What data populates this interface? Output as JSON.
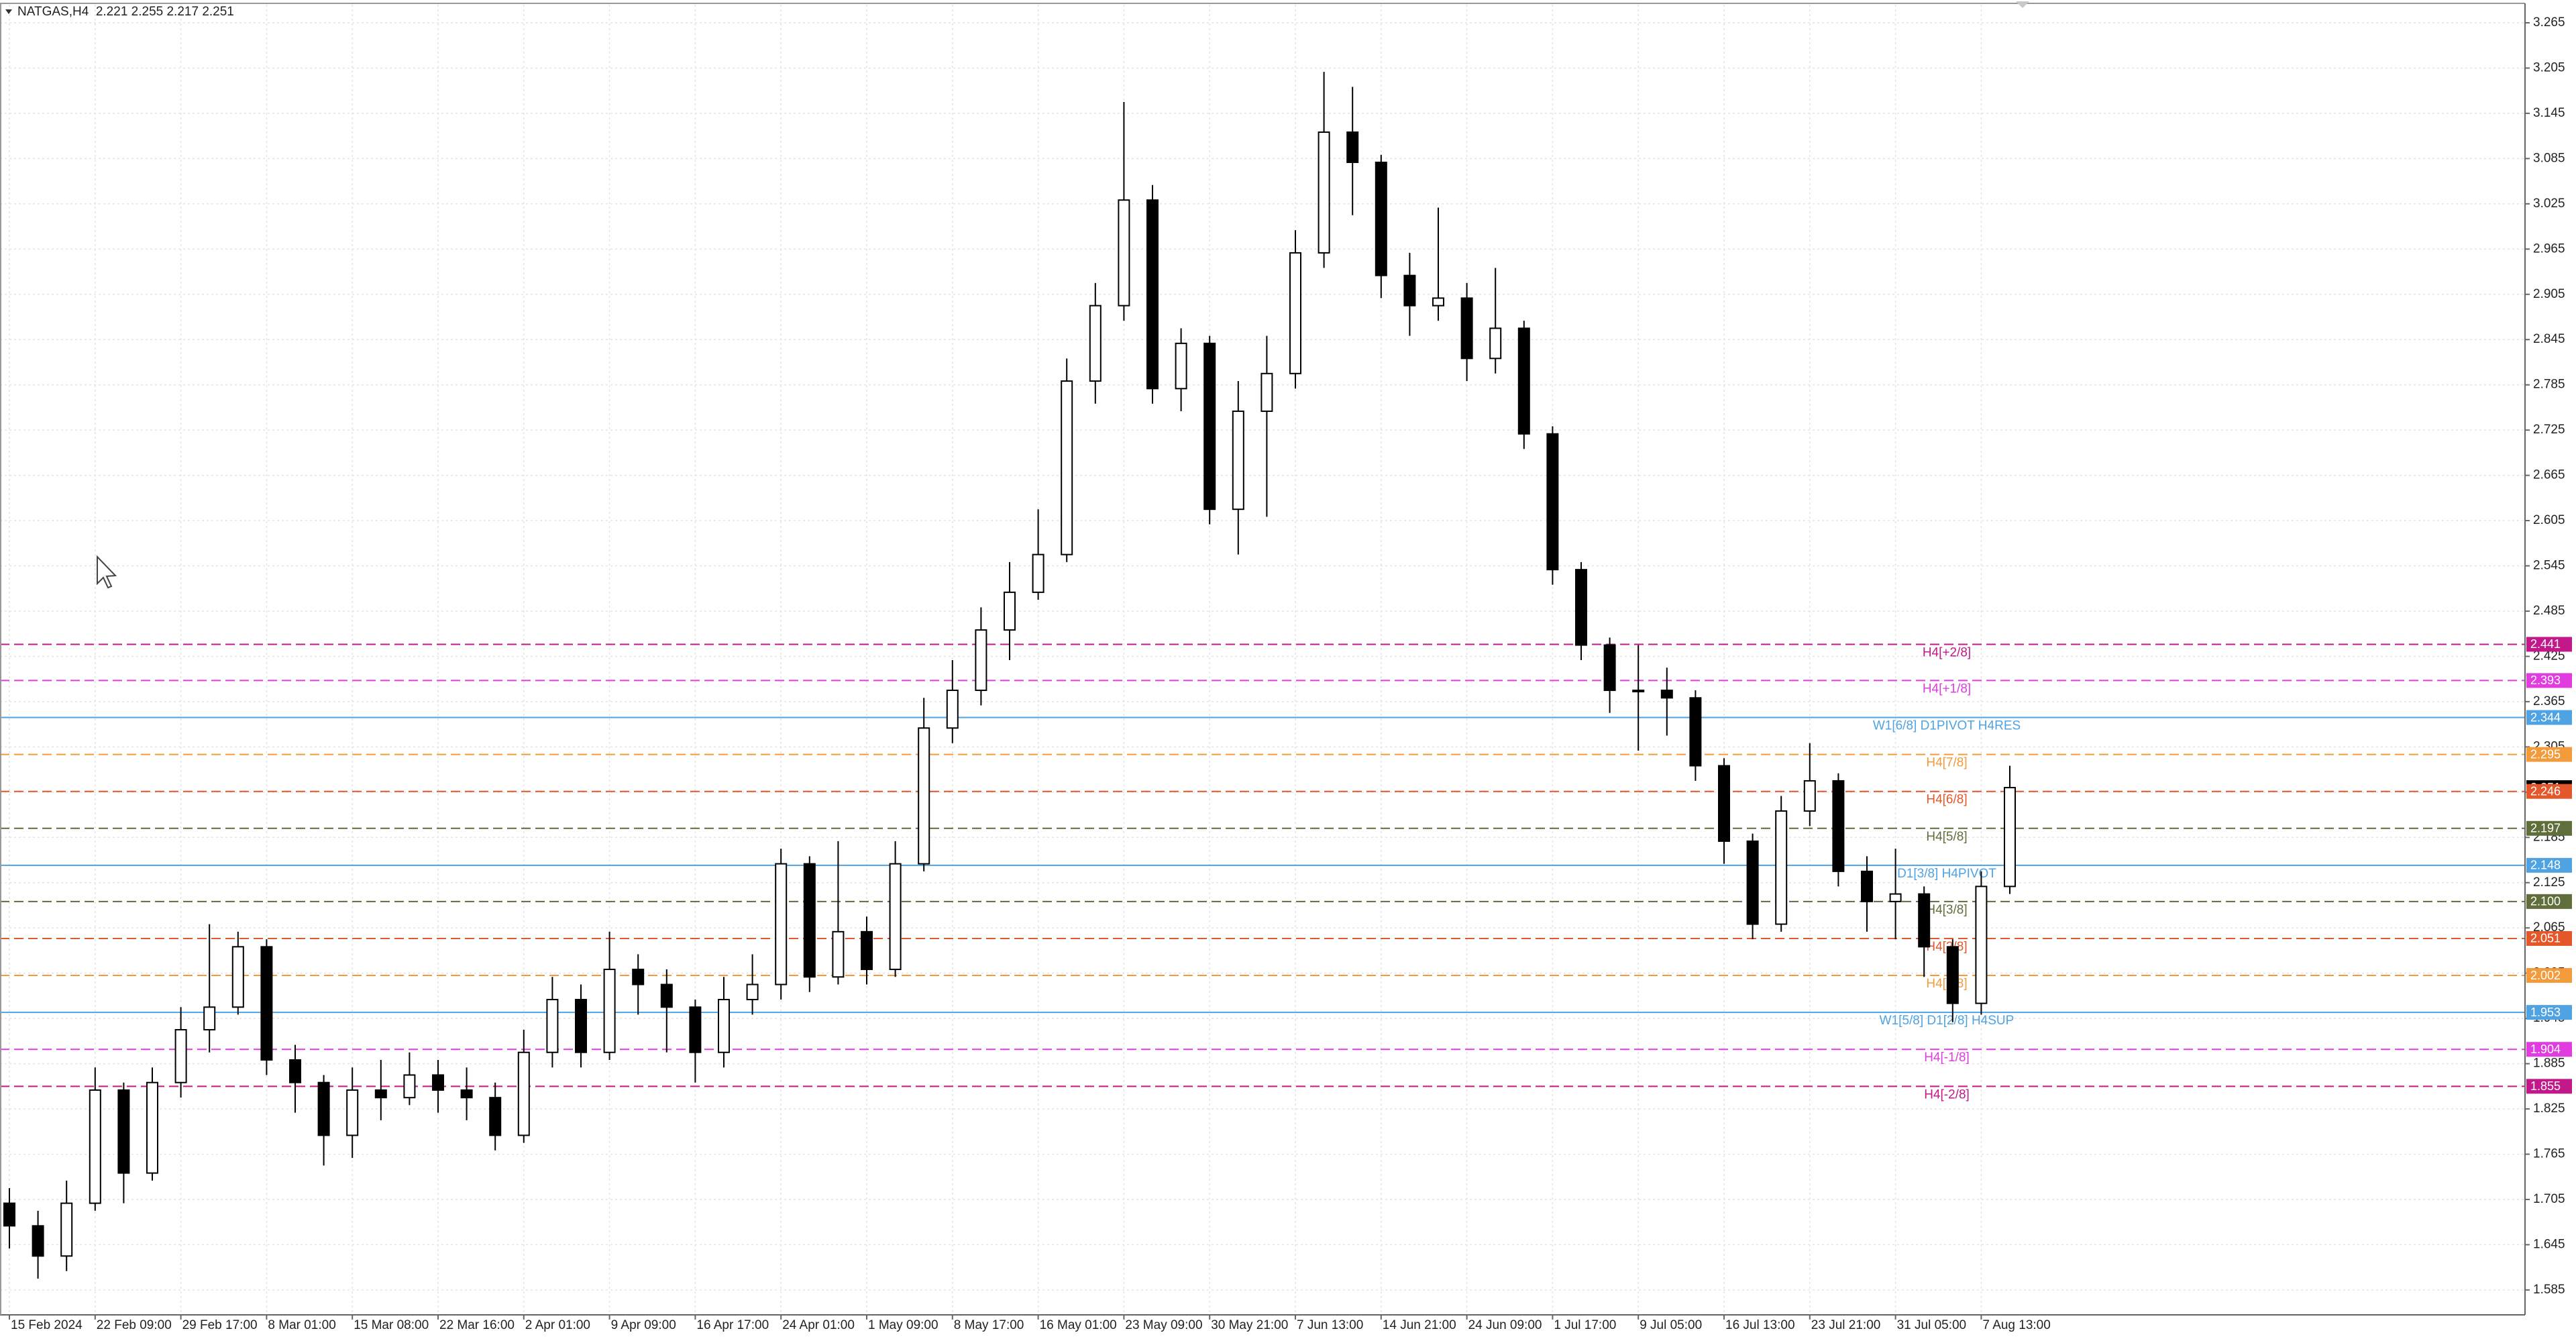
{
  "chart_data": {
    "type": "candlestick",
    "title": "NATGAS,H4  2.221 2.255 2.217 2.251",
    "xtick_labels": [
      "15 Feb 2024",
      "22 Feb 09:00",
      "29 Feb 17:00",
      "8 Mar 01:00",
      "15 Mar 08:00",
      "22 Mar 16:00",
      "2 Apr 01:00",
      "9 Apr 09:00",
      "16 Apr 17:00",
      "24 Apr 01:00",
      "1 May 09:00",
      "8 May 17:00",
      "16 May 01:00",
      "23 May 09:00",
      "30 May 21:00",
      "7 Jun 13:00",
      "14 Jun 21:00",
      "24 Jun 09:00",
      "1 Jul 17:00",
      "9 Jul 05:00",
      "16 Jul 13:00",
      "23 Jul 21:00",
      "31 Jul 05:00",
      "7 Aug 13:00"
    ],
    "open": [
      1.7,
      1.67,
      1.63,
      1.7,
      1.85,
      1.74,
      1.86,
      1.93,
      1.96,
      2.04,
      1.89,
      1.86,
      1.79,
      1.85,
      1.84,
      1.87,
      1.85,
      1.84,
      1.79,
      1.9,
      1.97,
      1.9,
      2.01,
      1.99,
      1.96,
      1.9,
      1.97,
      1.99,
      2.15,
      2.0,
      2.06,
      2.01,
      2.15,
      2.33,
      2.38,
      2.46,
      2.51,
      2.56,
      2.79,
      2.89,
      3.03,
      2.78,
      2.84,
      2.62,
      2.75,
      2.8,
      2.96,
      3.12,
      3.08,
      2.93,
      2.89,
      2.9,
      2.82,
      2.86,
      2.72,
      2.54,
      2.44,
      2.38,
      2.38,
      2.37,
      2.28,
      2.18,
      2.07,
      2.22,
      2.26,
      2.14,
      2.1,
      2.11,
      2.04,
      1.965,
      2.12
    ],
    "high": [
      1.72,
      1.69,
      1.73,
      1.88,
      1.86,
      1.88,
      1.96,
      2.07,
      2.06,
      2.05,
      1.91,
      1.87,
      1.88,
      1.89,
      1.9,
      1.89,
      1.88,
      1.86,
      1.93,
      2.0,
      1.99,
      2.06,
      2.03,
      2.01,
      1.97,
      2.0,
      2.03,
      2.17,
      2.16,
      2.18,
      2.08,
      2.18,
      2.37,
      2.42,
      2.49,
      2.55,
      2.62,
      2.82,
      2.92,
      3.16,
      3.05,
      2.86,
      2.85,
      2.79,
      2.85,
      2.99,
      3.2,
      3.18,
      3.09,
      2.96,
      3.02,
      2.92,
      2.94,
      2.87,
      2.73,
      2.55,
      2.45,
      2.44,
      2.41,
      2.38,
      2.29,
      2.19,
      2.24,
      2.31,
      2.27,
      2.16,
      2.17,
      2.12,
      2.05,
      2.14,
      2.28
    ],
    "low": [
      1.64,
      1.6,
      1.61,
      1.69,
      1.7,
      1.73,
      1.84,
      1.9,
      1.95,
      1.87,
      1.82,
      1.75,
      1.76,
      1.81,
      1.83,
      1.82,
      1.81,
      1.77,
      1.78,
      1.88,
      1.88,
      1.89,
      1.95,
      1.9,
      1.86,
      1.88,
      1.95,
      1.97,
      1.98,
      1.99,
      1.99,
      2.0,
      2.14,
      2.31,
      2.36,
      2.42,
      2.5,
      2.55,
      2.76,
      2.87,
      2.76,
      2.75,
      2.6,
      2.56,
      2.61,
      2.78,
      2.94,
      3.01,
      2.9,
      2.85,
      2.87,
      2.79,
      2.8,
      2.7,
      2.52,
      2.42,
      2.35,
      2.3,
      2.32,
      2.26,
      2.15,
      2.05,
      2.06,
      2.2,
      2.12,
      2.06,
      2.05,
      2.0,
      1.94,
      1.95,
      2.11
    ],
    "close": [
      1.67,
      1.63,
      1.7,
      1.85,
      1.74,
      1.86,
      1.93,
      1.96,
      2.04,
      1.89,
      1.86,
      1.79,
      1.85,
      1.84,
      1.87,
      1.85,
      1.84,
      1.79,
      1.9,
      1.97,
      1.9,
      2.01,
      1.99,
      1.96,
      1.9,
      1.97,
      1.99,
      2.15,
      2.0,
      2.06,
      2.01,
      2.15,
      2.33,
      2.38,
      2.46,
      2.51,
      2.56,
      2.79,
      2.89,
      3.03,
      2.78,
      2.84,
      2.62,
      2.75,
      2.8,
      2.96,
      3.12,
      3.08,
      2.93,
      2.89,
      2.9,
      2.82,
      2.86,
      2.72,
      2.54,
      2.44,
      2.38,
      2.38,
      2.37,
      2.28,
      2.18,
      2.07,
      2.22,
      2.26,
      2.14,
      2.1,
      2.11,
      2.04,
      1.965,
      2.12,
      2.251
    ],
    "color_up": "#ffffff",
    "color_down": "#000000",
    "candle_outline": "#000000",
    "ylim": [
      1.552,
      3.289
    ],
    "yticks": [
      1.585,
      1.645,
      1.705,
      1.765,
      1.825,
      1.885,
      1.945,
      2.005,
      2.065,
      2.125,
      2.185,
      2.245,
      2.305,
      2.365,
      2.425,
      2.485,
      2.545,
      2.605,
      2.665,
      2.725,
      2.785,
      2.845,
      2.905,
      2.965,
      3.025,
      3.085,
      3.145,
      3.205,
      3.265
    ],
    "grid": true,
    "last_price": 2.251,
    "levels": [
      {
        "name": "H4[+2/8]",
        "value": 2.441,
        "color": "#c2188a",
        "dashed": true
      },
      {
        "name": "H4[+1/8]",
        "value": 2.393,
        "color": "#e03ce0",
        "dashed": true
      },
      {
        "name": "W1[6/8] D1PIVOT H4RES",
        "value": 2.344,
        "color": "#4fa3e3",
        "dashed": false
      },
      {
        "name": "H4[7/8]",
        "value": 2.295,
        "color": "#f39a3a",
        "dashed": true
      },
      {
        "name": "H4[6/8]",
        "value": 2.246,
        "color": "#e4572a",
        "dashed": true
      },
      {
        "name": "H4[5/8]",
        "value": 2.197,
        "color": "#5f6e3a",
        "dashed": true
      },
      {
        "name": "D1[3/8] H4PIVOT",
        "value": 2.148,
        "color": "#4fa3e3",
        "dashed": false
      },
      {
        "name": "H4[3/8]",
        "value": 2.1,
        "value_label": "2.100",
        "color": "#5f6e3a",
        "dashed": true
      },
      {
        "name": "H4[2/8]",
        "value": 2.051,
        "color": "#e4572a",
        "dashed": true
      },
      {
        "name": "H4[1/8]",
        "value": 2.002,
        "color": "#f39a3a",
        "dashed": true
      },
      {
        "name": "W1[5/8] D1[2/8] H4SUP",
        "value": 1.953,
        "color": "#4fa3e3",
        "dashed": false
      },
      {
        "name": "H4[-1/8]",
        "value": 1.904,
        "color": "#e03ce0",
        "dashed": true
      },
      {
        "name": "H4[-2/8]",
        "value": 1.855,
        "color": "#c2188a",
        "dashed": true
      }
    ]
  }
}
